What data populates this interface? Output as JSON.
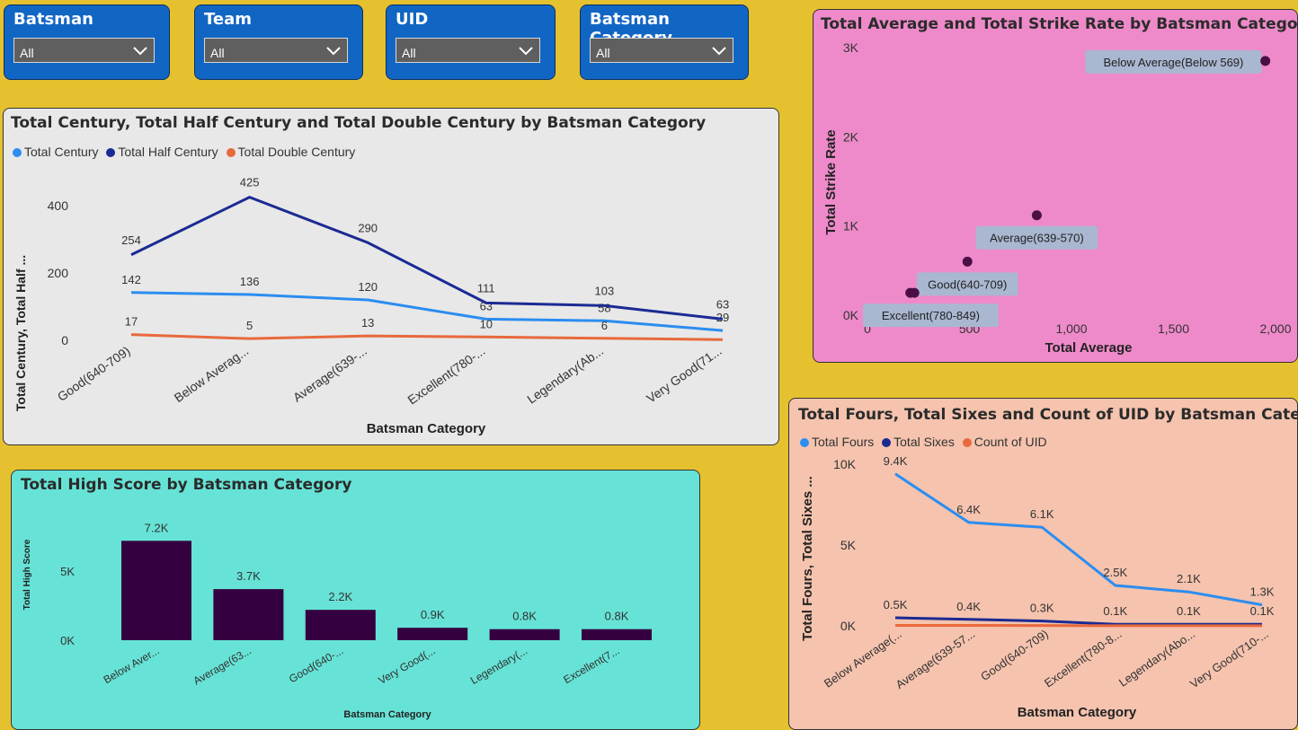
{
  "slicers": [
    {
      "title": "Batsman",
      "value": "All"
    },
    {
      "title": "Team",
      "value": "All"
    },
    {
      "title": "UID",
      "value": "All"
    },
    {
      "title": "Batsman Category",
      "value": "All"
    }
  ],
  "colors": {
    "background": "#E5C12F",
    "slicer_bg": "#1166C4",
    "light_blue": "#2B8DF0",
    "dark_blue": "#1B2A93",
    "orange": "#E8693C",
    "bar": "#35003F",
    "scatter_point": "#4B0E45",
    "panel_line": "#E8E8E8",
    "panel_scatter": "#EE8ACA",
    "panel_bar": "#66E3D6",
    "panel_fours": "#F5C3AE"
  },
  "line_chart": {
    "title": "Total Century, Total Half Century and Total Double Century by Batsman Category",
    "xlabel": "Batsman Category",
    "ylabel": "Total Century, Total Half ...",
    "yticks": [
      "0",
      "200",
      "400"
    ],
    "legend": [
      "Total Century",
      "Total Half Century",
      "Total Double Century"
    ]
  },
  "scatter_chart": {
    "title": "Total Average and Total Strike Rate by Batsman Category",
    "xlabel": "Total Average",
    "ylabel": "Total Strike Rate",
    "xticks": [
      "0",
      "500",
      "1,000",
      "1,500",
      "2,000"
    ],
    "yticks": [
      "0K",
      "1K",
      "2K",
      "3K"
    ]
  },
  "bar_chart": {
    "title": "Total High Score by Batsman Category",
    "xlabel": "Batsman Category",
    "ylabel": "Total High Score",
    "yticks": [
      "0K",
      "5K"
    ]
  },
  "fours_chart": {
    "title": "Total Fours, Total Sixes and Count of UID by Batsman Category",
    "xlabel": "Batsman Category",
    "ylabel": "Total Fours, Total Sixes ...",
    "yticks": [
      "0K",
      "5K",
      "10K"
    ],
    "legend": [
      "Total Fours",
      "Total Sixes",
      "Count of UID"
    ]
  },
  "chart_data": [
    {
      "type": "line",
      "title": "Total Century, Total Half Century and Total Double Century by Batsman Category",
      "categories": [
        "Good(640-709)",
        "Below Averag...",
        "Average(639-...",
        "Excellent(780-...",
        "Legendary(Ab...",
        "Very Good(71..."
      ],
      "series": [
        {
          "name": "Total Century",
          "values": [
            142,
            136,
            120,
            63,
            58,
            29
          ],
          "labels": [
            "142",
            "136",
            "120",
            "63",
            "58",
            "29"
          ]
        },
        {
          "name": "Total Half Century",
          "values": [
            254,
            425,
            290,
            111,
            103,
            63
          ],
          "labels": [
            "254",
            "425",
            "290",
            "111",
            "103",
            "63"
          ]
        },
        {
          "name": "Total Double Century",
          "values": [
            17,
            5,
            13,
            10,
            6,
            2
          ],
          "labels": [
            "17",
            "5",
            "13",
            "10",
            "6",
            ""
          ]
        }
      ],
      "xlabel": "Batsman Category",
      "ylabel": "Total Century, Total Half ...",
      "ylim": [
        0,
        480
      ]
    },
    {
      "type": "scatter",
      "title": "Total Average and Total Strike Rate by Batsman Category",
      "points": [
        {
          "label": "Below Average(Below 569)",
          "x": 1950,
          "y": 2850
        },
        {
          "label": "Average(639-570)",
          "x": 830,
          "y": 1120
        },
        {
          "label": "Good(640-709)",
          "x": 490,
          "y": 600
        },
        {
          "label": "Excellent(780-849)",
          "x": 210,
          "y": 250
        },
        {
          "label": "",
          "x": 230,
          "y": 250
        }
      ],
      "xlabel": "Total Average",
      "ylabel": "Total Strike Rate",
      "xlim": [
        0,
        2000
      ],
      "ylim": [
        0,
        3000
      ]
    },
    {
      "type": "bar",
      "title": "Total High Score by Batsman Category",
      "categories": [
        "Below Aver...",
        "Average(63...",
        "Good(640-...",
        "Very Good(...",
        "Legendary(...",
        "Excellent(7..."
      ],
      "values": [
        7200,
        3700,
        2200,
        900,
        800,
        800
      ],
      "labels": [
        "7.2K",
        "3.7K",
        "2.2K",
        "0.9K",
        "0.8K",
        "0.8K"
      ],
      "xlabel": "Batsman Category",
      "ylabel": "Total High Score",
      "ylim": [
        0,
        8000
      ]
    },
    {
      "type": "line",
      "title": "Total Fours, Total Sixes and Count of UID by Batsman Category",
      "categories": [
        "Below Average(...",
        "Average(639-57...",
        "Good(640-709)",
        "Excellent(780-8...",
        "Legendary(Abo...",
        "Very Good(710-..."
      ],
      "series": [
        {
          "name": "Total Fours",
          "values": [
            9400,
            6400,
            6100,
            2500,
            2100,
            1300
          ],
          "labels": [
            "9.4K",
            "6.4K",
            "6.1K",
            "2.5K",
            "2.1K",
            "1.3K"
          ]
        },
        {
          "name": "Total Sixes",
          "values": [
            500,
            400,
            300,
            100,
            100,
            100
          ],
          "labels": [
            "0.5K",
            "0.4K",
            "0.3K",
            "0.1K",
            "0.1K",
            "0.1K"
          ]
        },
        {
          "name": "Count of UID",
          "values": [
            30,
            25,
            20,
            10,
            8,
            6
          ],
          "labels": []
        }
      ],
      "xlabel": "Batsman Category",
      "ylabel": "Total Fours, Total Sixes ...",
      "ylim": [
        0,
        10000
      ]
    }
  ]
}
